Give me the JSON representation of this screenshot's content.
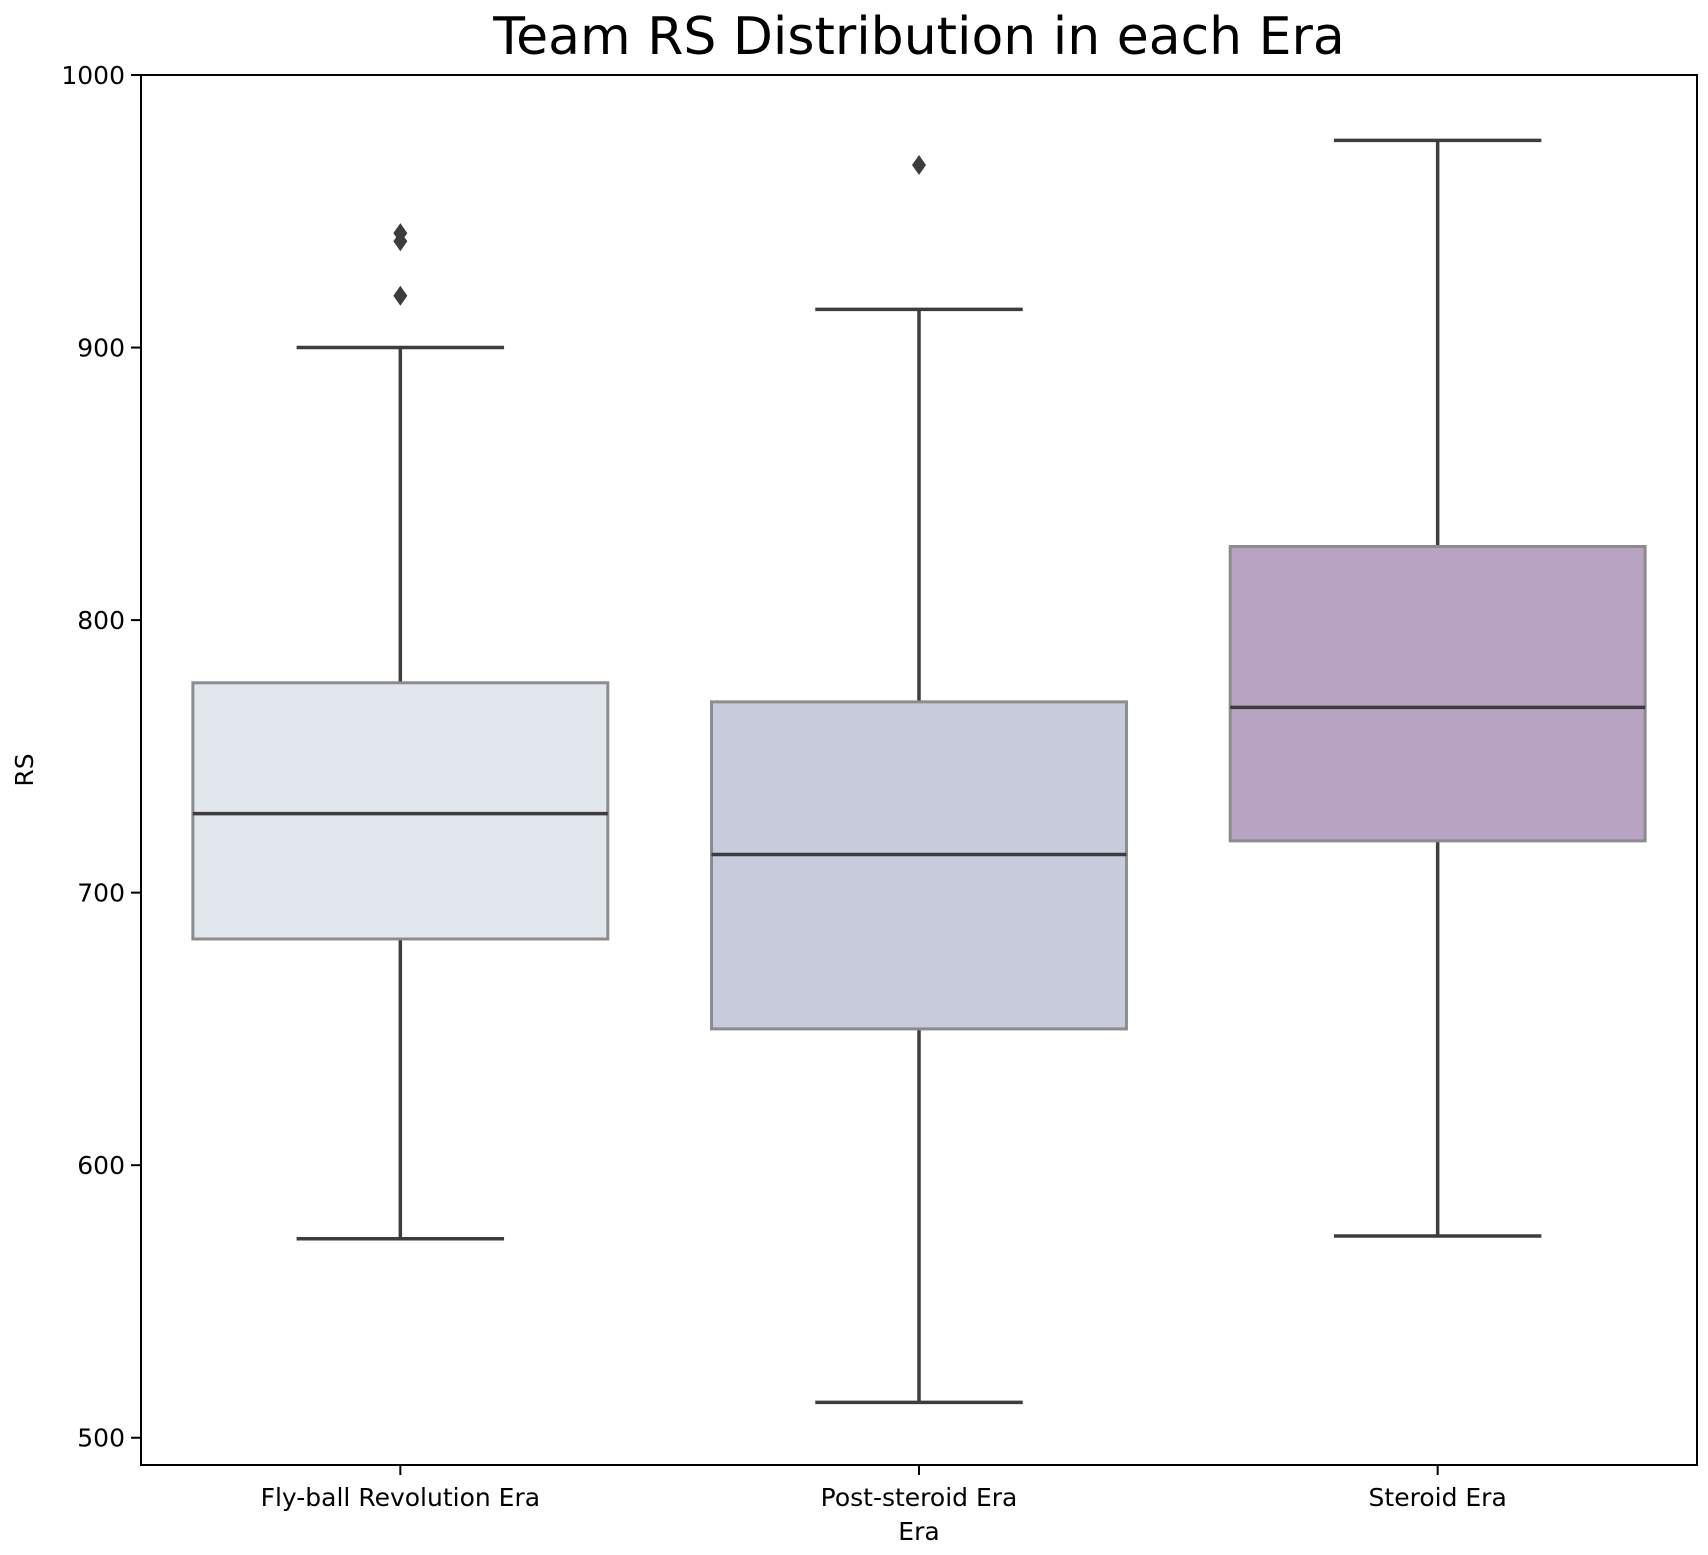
{
  "chart_data": {
    "type": "box",
    "title": "Team RS Distribution in each Era",
    "xlabel": "Era",
    "ylabel": "RS",
    "ylim": [
      490,
      1000
    ],
    "yticks": [
      500,
      600,
      700,
      800,
      900,
      1000
    ],
    "grid": false,
    "categories": [
      "Fly-ball Revolution Era",
      "Post-steroid Era",
      "Steroid Era"
    ],
    "boxes": [
      {
        "category": "Fly-ball Revolution Era",
        "whisker_low": 573,
        "q1": 683,
        "median": 729,
        "q3": 777,
        "whisker_high": 900,
        "outliers": [
          919,
          939,
          942
        ],
        "color": "#e2e6ed"
      },
      {
        "category": "Post-steroid Era",
        "whisker_low": 513,
        "q1": 650,
        "median": 714,
        "q3": 770,
        "whisker_high": 914,
        "outliers": [
          967
        ],
        "color": "#c8cbdb"
      },
      {
        "category": "Steroid Era",
        "whisker_low": 574,
        "q1": 719,
        "median": 768,
        "q3": 827,
        "whisker_high": 976,
        "outliers": [],
        "color": "#b9a4c3"
      }
    ],
    "line_color": "#3d3d3d",
    "box_edge_color": "#8c8c8c"
  }
}
